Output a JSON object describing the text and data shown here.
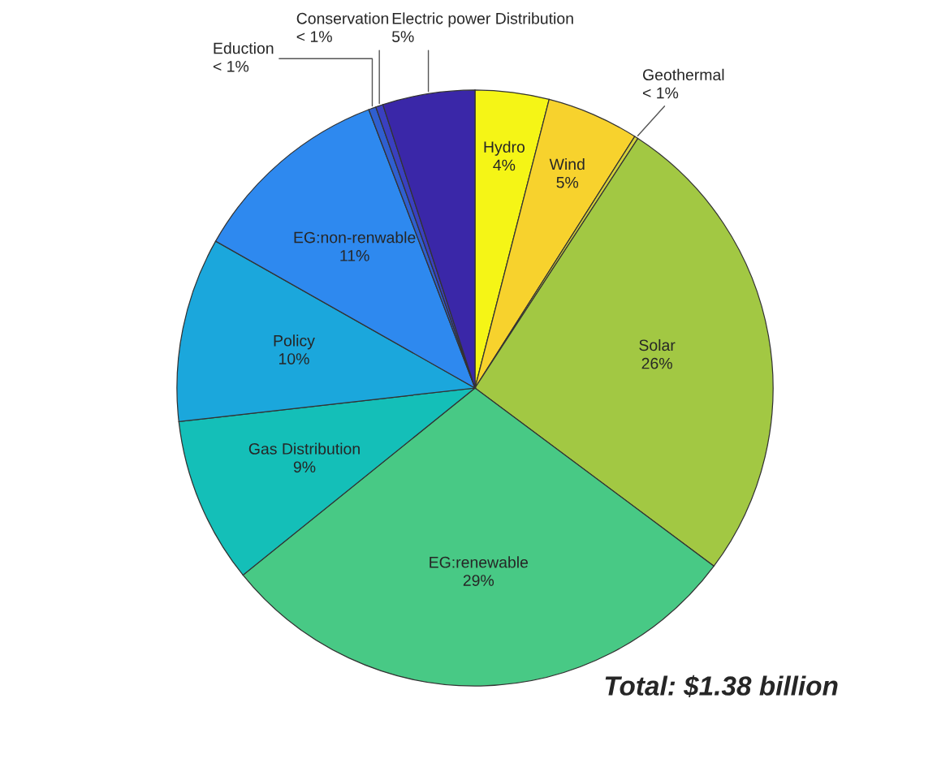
{
  "chart_data": {
    "type": "pie",
    "categories": [
      "Hydro",
      "Wind",
      "Geothermal",
      "Solar",
      "EG:renewable",
      "Gas Distribution",
      "Policy",
      "EG:non-renwable",
      "Eduction",
      "Conservation",
      "Electric power Distribution"
    ],
    "values": [
      4,
      5,
      0.2,
      26,
      29,
      9,
      10,
      11,
      0.4,
      0.4,
      5
    ],
    "value_labels": [
      "4%",
      "5%",
      "< 1%",
      "26%",
      "29%",
      "9%",
      "10%",
      "11%",
      "< 1%",
      "< 1%",
      "5%"
    ],
    "colors": [
      "#f5f516",
      "#f7d22d",
      "#d4d23a",
      "#a2c843",
      "#48c985",
      "#14bfb8",
      "#1ba7dc",
      "#2e89ef",
      "#2f5fd0",
      "#3a40c0",
      "#3a27a8"
    ],
    "annotations": [
      "Total: $1.38 billion"
    ]
  }
}
